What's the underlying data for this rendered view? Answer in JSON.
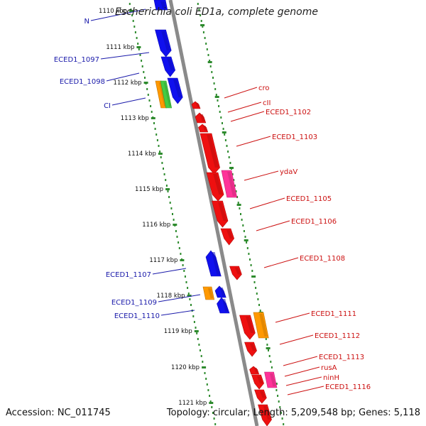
{
  "title": "Escherichia coli ED1a, complete genome",
  "footer": {
    "accession": "Accession: NC_011745",
    "summary": "Topology: circular; Length: 5,209,548 bp; Genes: 5,118"
  },
  "colors": {
    "backbone": "#8a8a8a",
    "ticks": "#2e8b2e",
    "forward_gene": "#1010ee",
    "reverse_gene": "#ee1010",
    "orange_gene": "#ff9900",
    "green_gene": "#44cc44",
    "pink_gene": "#ff3399",
    "left_label": "#1a1aaa",
    "right_label": "#cc1111"
  },
  "scale": {
    "labels": [
      "1110 kbp",
      "1111 kbp",
      "1112 kbp",
      "1113 kbp",
      "1114 kbp",
      "1115 kbp",
      "1116 kbp",
      "1117 kbp",
      "1118 kbp",
      "1119 kbp",
      "1120 kbp",
      "1121 kbp"
    ]
  },
  "left_labels": [
    "N",
    "ECED1_1097",
    "ECED1_1098",
    "CI",
    "ECED1_1107",
    "ECED1_1109",
    "ECED1_1110"
  ],
  "right_labels": [
    "cro",
    "cII",
    "ECED1_1102",
    "ECED1_1103",
    "ydaV",
    "ECED1_1105",
    "ECED1_1106",
    "ECED1_1108",
    "ECED1_1111",
    "ECED1_1112",
    "ECED1_1113",
    "rusA",
    "ninH",
    "ECED1_1116"
  ]
}
